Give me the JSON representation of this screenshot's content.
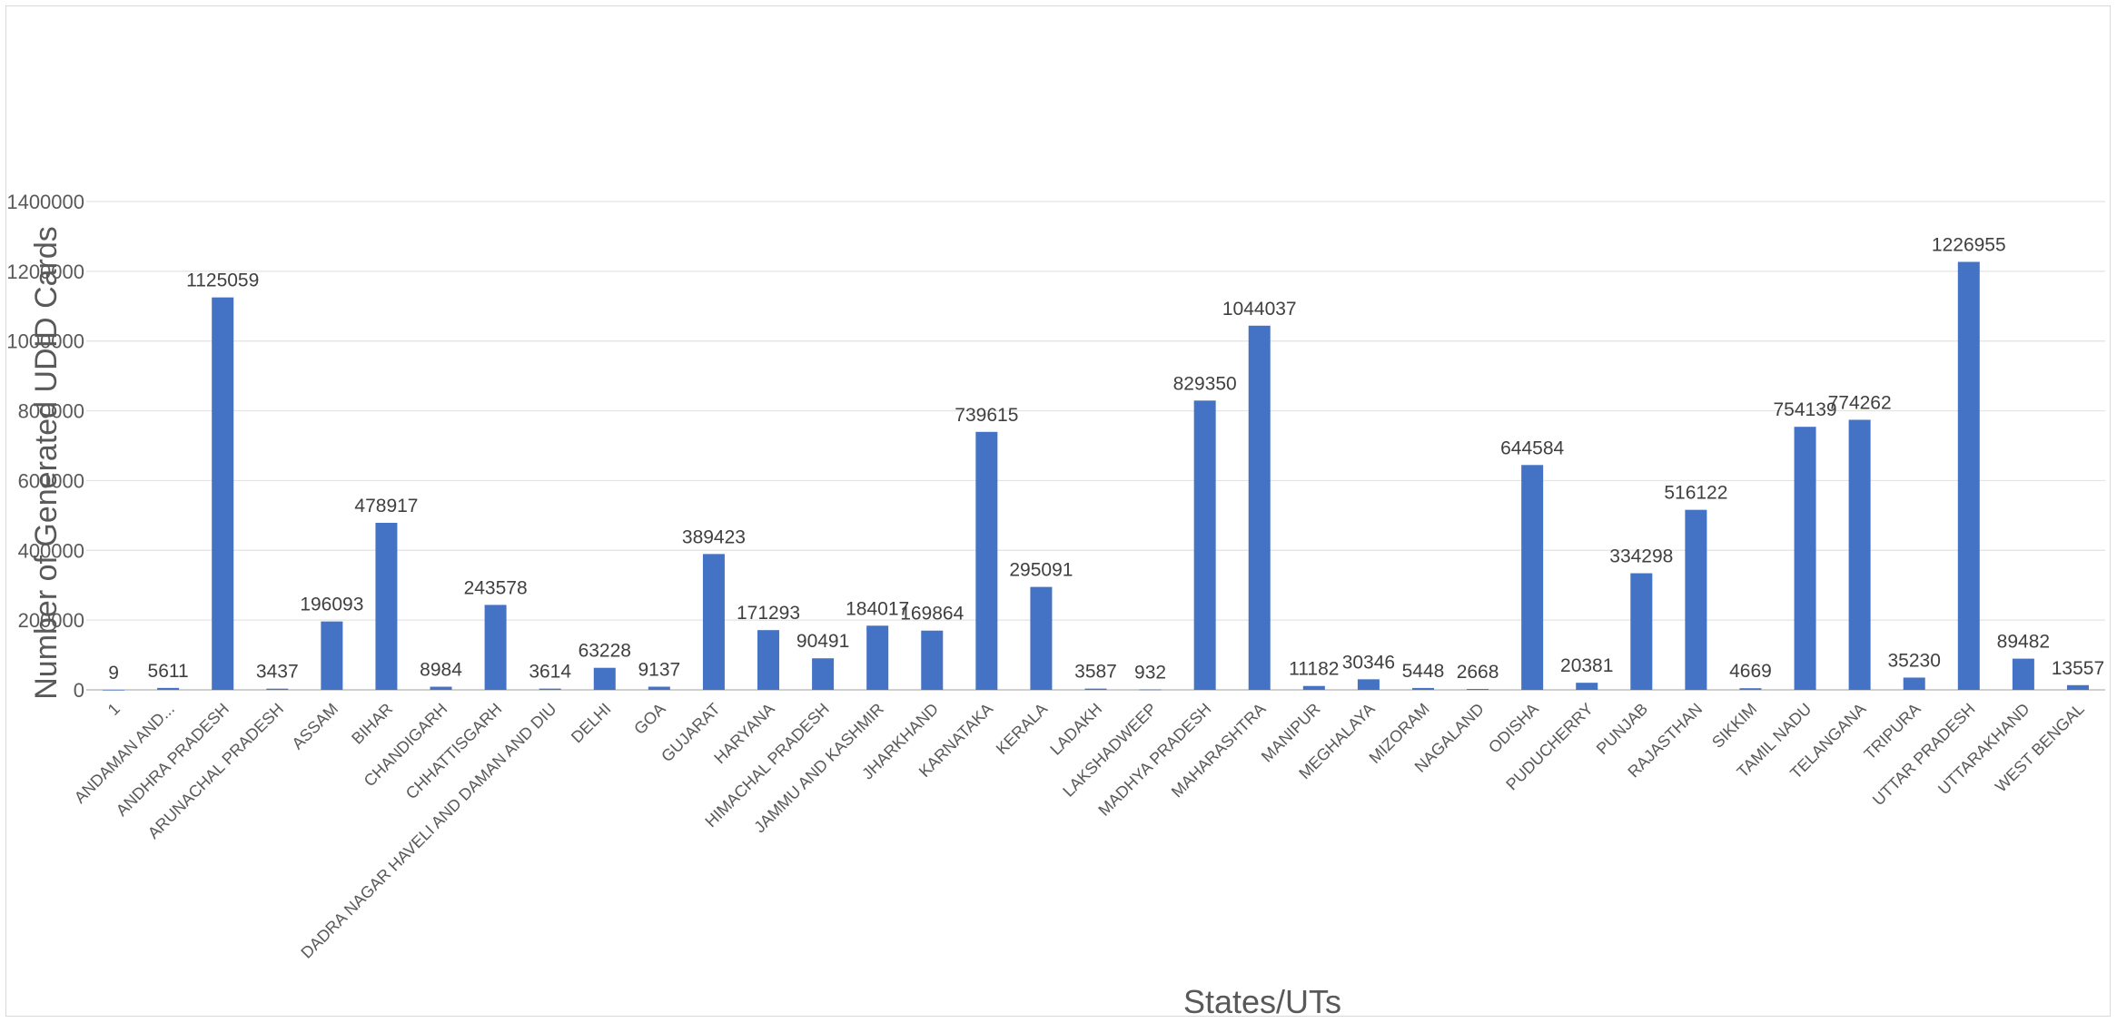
{
  "chart_data": {
    "type": "bar",
    "title": "",
    "xlabel": "States/UTs",
    "ylabel": "Number of Generated UDID Cards",
    "ylim": [
      0,
      1400000
    ],
    "yticks": [
      0,
      200000,
      400000,
      600000,
      800000,
      1000000,
      1200000,
      1400000
    ],
    "ytick_labels": [
      "0",
      "200000",
      "400000",
      "600000",
      "800000",
      "1000000",
      "1200000",
      "1400000"
    ],
    "grid": true,
    "legend": "none",
    "bar_color": "#4472c4",
    "categories": [
      "1",
      "ANDAMAN AND...",
      "ANDHRA PRADESH",
      "ARUNACHAL PRADESH",
      "ASSAM",
      "BIHAR",
      "CHANDIGARH",
      "CHHATTISGARH",
      "DADRA NAGAR HAVELI AND DAMAN AND DIU",
      "DELHI",
      "GOA",
      "GUJARAT",
      "HARYANA",
      "HIMACHAL PRADESH",
      "JAMMU AND KASHMIR",
      "JHARKHAND",
      "KARNATAKA",
      "KERALA",
      "LADAKH",
      "LAKSHADWEEP",
      "MADHYA PRADESH",
      "MAHARASHTRA",
      "MANIPUR",
      "MEGHALAYA",
      "MIZORAM",
      "NAGALAND",
      "ODISHA",
      "PUDUCHERRY",
      "PUNJAB",
      "RAJASTHAN",
      "SIKKIM",
      "TAMIL NADU",
      "TELANGANA",
      "TRIPURA",
      "UTTAR PRADESH",
      "UTTARAKHAND",
      "WEST BENGAL"
    ],
    "values": [
      9,
      5611,
      1125059,
      3437,
      196093,
      478917,
      8984,
      243578,
      3614,
      63228,
      9137,
      389423,
      171293,
      90491,
      184017,
      169864,
      739615,
      295091,
      3587,
      932,
      829350,
      1044037,
      11182,
      30346,
      5448,
      2668,
      644584,
      20381,
      334298,
      516122,
      4669,
      754139,
      774262,
      35230,
      1226955,
      89482,
      13557
    ]
  }
}
